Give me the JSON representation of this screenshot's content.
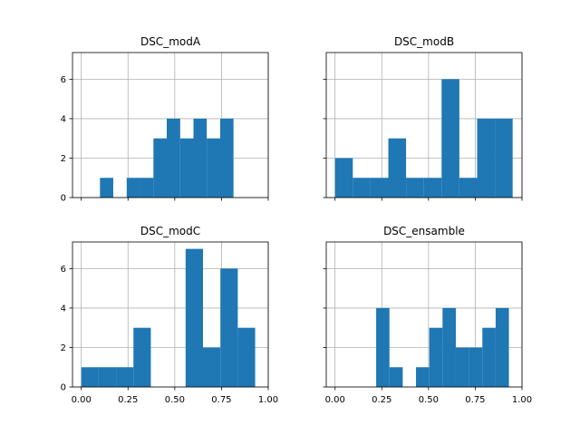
{
  "chart_data": [
    {
      "type": "bar",
      "title": "DSC_modA",
      "xlabel": "",
      "ylabel": "",
      "xlim": [
        -0.047,
        1.0
      ],
      "ylim": [
        0,
        7.35
      ],
      "grid": true,
      "color": "#1f77b4",
      "show_x_ticklabels": false,
      "show_y_ticklabels": true,
      "bin_edges": [
        0.1,
        0.171,
        0.243,
        0.314,
        0.386,
        0.457,
        0.529,
        0.6,
        0.671,
        0.743,
        0.814
      ],
      "counts": [
        1,
        0,
        1,
        1,
        3,
        4,
        3,
        4,
        3,
        4
      ]
    },
    {
      "type": "bar",
      "title": "DSC_modB",
      "xlabel": "",
      "ylabel": "",
      "xlim": [
        -0.047,
        1.0
      ],
      "ylim": [
        0,
        7.35
      ],
      "grid": true,
      "color": "#1f77b4",
      "show_x_ticklabels": false,
      "show_y_ticklabels": false,
      "bin_edges": [
        0.0,
        0.095,
        0.19,
        0.285,
        0.38,
        0.475,
        0.57,
        0.665,
        0.76,
        0.855,
        0.95
      ],
      "counts": [
        2,
        1,
        1,
        3,
        1,
        1,
        6,
        1,
        4,
        4
      ]
    },
    {
      "type": "bar",
      "title": "DSC_modC",
      "xlabel": "",
      "ylabel": "",
      "xlim": [
        -0.047,
        1.0
      ],
      "ylim": [
        0,
        7.35
      ],
      "grid": true,
      "color": "#1f77b4",
      "show_x_ticklabels": true,
      "show_y_ticklabels": true,
      "bin_edges": [
        0.0,
        0.093,
        0.186,
        0.279,
        0.372,
        0.465,
        0.558,
        0.651,
        0.744,
        0.837,
        0.93
      ],
      "counts": [
        1,
        1,
        1,
        3,
        0,
        0,
        7,
        2,
        6,
        3
      ]
    },
    {
      "type": "bar",
      "title": "DSC_ensamble",
      "xlabel": "",
      "ylabel": "",
      "xlim": [
        -0.047,
        1.0
      ],
      "ylim": [
        0,
        7.35
      ],
      "grid": true,
      "color": "#1f77b4",
      "show_x_ticklabels": true,
      "show_y_ticklabels": false,
      "bin_edges": [
        0.22,
        0.291,
        0.362,
        0.433,
        0.504,
        0.575,
        0.646,
        0.717,
        0.788,
        0.859,
        0.93
      ],
      "counts": [
        4,
        1,
        0,
        1,
        3,
        4,
        2,
        2,
        3,
        4
      ]
    }
  ],
  "axes": {
    "x_ticks": [
      0.0,
      0.25,
      0.5,
      0.75,
      1.0
    ],
    "x_tick_labels": [
      "0.00",
      "0.25",
      "0.50",
      "0.75",
      "1.00"
    ],
    "y_ticks": [
      0,
      2,
      4,
      6
    ],
    "y_tick_labels": [
      "0",
      "2",
      "4",
      "6"
    ]
  },
  "style": {
    "bar_color": "#1f77b4",
    "grid_color": "#b0b0b0",
    "axis_color": "#000000",
    "background": "#ffffff"
  }
}
